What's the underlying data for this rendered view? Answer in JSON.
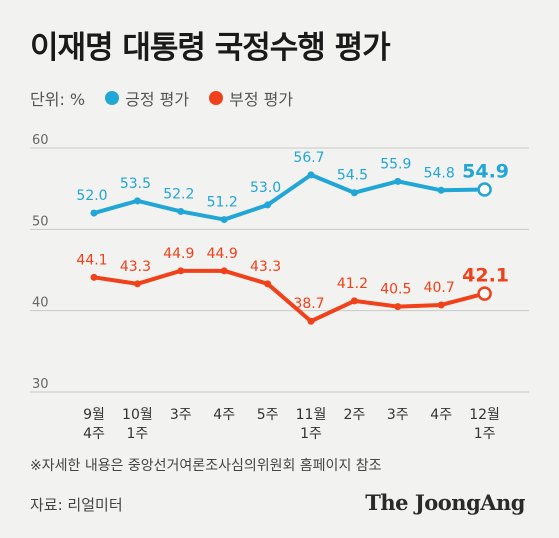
{
  "title": "이재명 대통령 국정수행 평가",
  "unit": "단위: %",
  "colors": {
    "positive": "#21a6d6",
    "negative": "#f0411b",
    "grid": "#c9c9c9"
  },
  "chart_data": {
    "type": "line",
    "categories": [
      "9월\n4주",
      "10월\n1주",
      "3주",
      "4주",
      "5주",
      "11월\n1주",
      "2주",
      "3주",
      "4주",
      "12월\n1주"
    ],
    "series": [
      {
        "name": "긍정 평가",
        "values": [
          52.0,
          53.5,
          52.2,
          51.2,
          53.0,
          56.7,
          54.5,
          55.9,
          54.8,
          54.9
        ],
        "labels": [
          "52.0",
          "53.5",
          "52.2",
          "51.2",
          "53.0",
          "56.7",
          "54.5",
          "55.9",
          "54.8",
          "54.9"
        ]
      },
      {
        "name": "부정 평가",
        "values": [
          44.1,
          43.3,
          44.9,
          44.9,
          43.3,
          38.7,
          41.2,
          40.5,
          40.7,
          42.1
        ],
        "labels": [
          "44.1",
          "43.3",
          "44.9",
          "44.9",
          "43.3",
          "38.7",
          "41.2",
          "40.5",
          "40.7",
          "42.1"
        ]
      }
    ],
    "yticks": [
      "30",
      "40",
      "50",
      "60"
    ],
    "ylim": [
      30,
      60
    ],
    "grid": true,
    "legend": "top-left"
  },
  "footnote": "※자세한 내용은 중앙선거여론조사심의위원회 홈페이지 참조",
  "source": "자료: 리얼미터",
  "brand": "The JoongAng"
}
